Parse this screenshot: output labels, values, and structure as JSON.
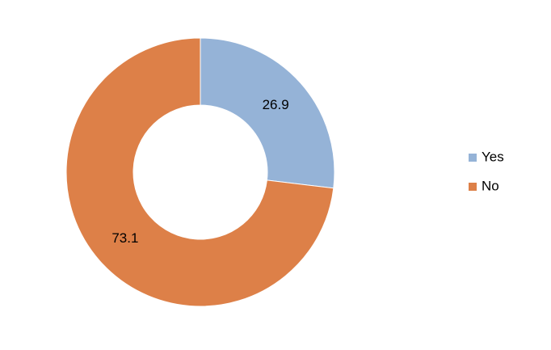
{
  "chart_data": {
    "type": "doughnut",
    "categories": [
      "Yes",
      "No"
    ],
    "values": [
      26.9,
      73.1
    ],
    "colors": [
      "#95b3d7",
      "#dd8048"
    ],
    "legend": "right"
  }
}
